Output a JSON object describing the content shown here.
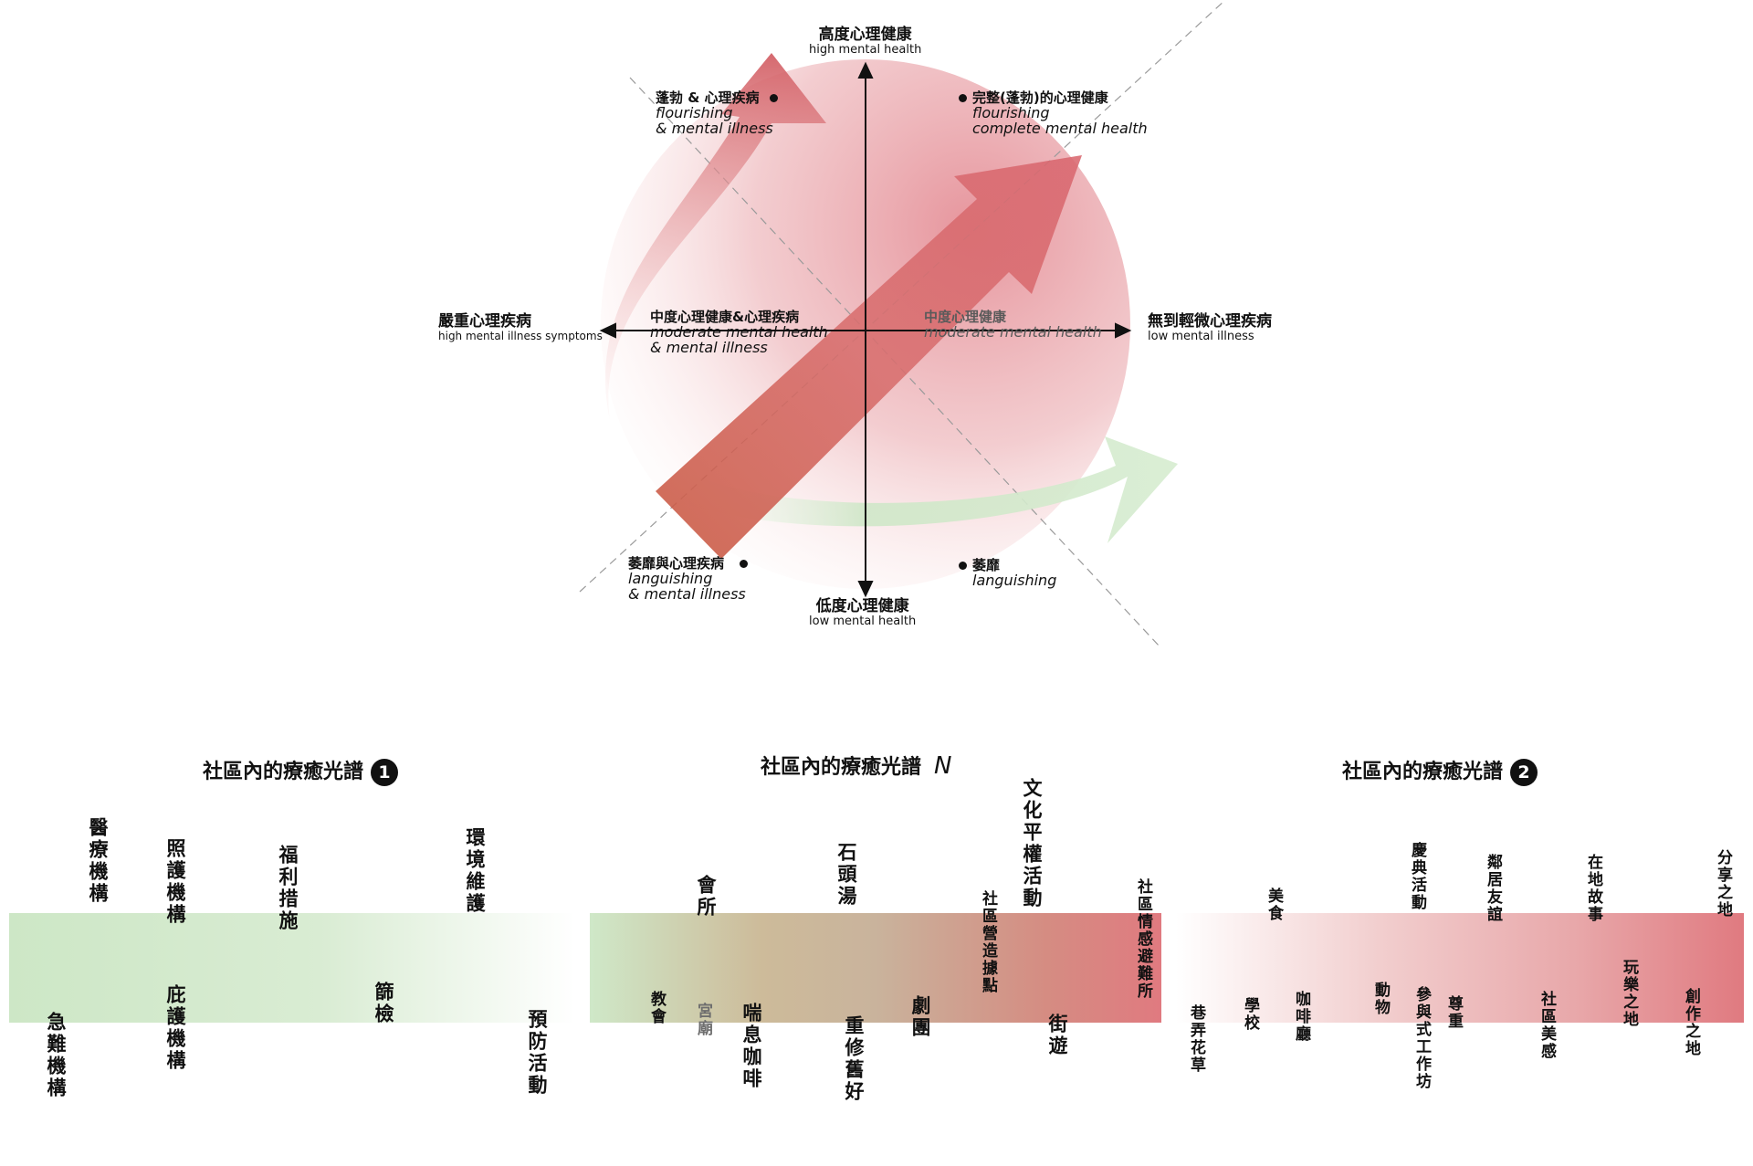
{
  "quadrant": {
    "top": {
      "zh": "高度心理健康",
      "en": "high mental health"
    },
    "bottom": {
      "zh": "低度心理健康",
      "en": "low mental health"
    },
    "left": {
      "zh": "嚴重心理疾病",
      "en": "high mental illness symptoms"
    },
    "right": {
      "zh": "無到輕微心理疾病",
      "en": "low mental illness"
    },
    "tl": {
      "zh": "蓬勃 & 心理疾病",
      "en1": "flourishing",
      "en2": "& mental illness"
    },
    "tr": {
      "zh": "完整(蓬勃)的心理健康",
      "en1": "flourishing",
      "en2": "complete mental health"
    },
    "bl": {
      "zh": "萎靡與心理疾病",
      "en1": "languishing",
      "en2": "& mental illness"
    },
    "br": {
      "zh": "萎靡",
      "en1": "languishing"
    },
    "ml": {
      "zh": "中度心理健康&心理疾病",
      "en1": "moderate mental health",
      "en2": "& mental illness"
    },
    "mr": {
      "zh": "中度心理健康",
      "en1": "moderate mental health"
    }
  },
  "spectra": {
    "s1": {
      "title": "社區內的療癒光譜",
      "badge": "1",
      "above": [
        "醫療機構",
        "照護機構",
        "福利措施",
        "環境維護"
      ],
      "below": [
        "急難機構",
        "庇護機構",
        "篩檢",
        "預防活動"
      ]
    },
    "s2": {
      "title": "社區內的療癒光譜",
      "badge": "N",
      "above": [
        "會所",
        "石頭湯",
        "文化平權活動",
        "社區營造據點",
        "社區情感避難所"
      ],
      "below": [
        "教會",
        "宮廟",
        "喘息咖啡",
        "重修舊好",
        "劇團",
        "街遊"
      ]
    },
    "s3": {
      "title": "社區內的療癒光譜",
      "badge": "2",
      "above": [
        "美食",
        "慶典活動",
        "鄰居友誼",
        "在地故事",
        "分享之地"
      ],
      "below": [
        "巷弄花草",
        "學校",
        "咖啡廳",
        "動物",
        "參與式工作坊",
        "尊重",
        "社區美感",
        "玩樂之地",
        "創作之地"
      ]
    }
  },
  "colors": {
    "green": "#cfe8c8",
    "red": "#e07a80",
    "circle": "#e9a7ad",
    "arrow": "#d66b73"
  }
}
